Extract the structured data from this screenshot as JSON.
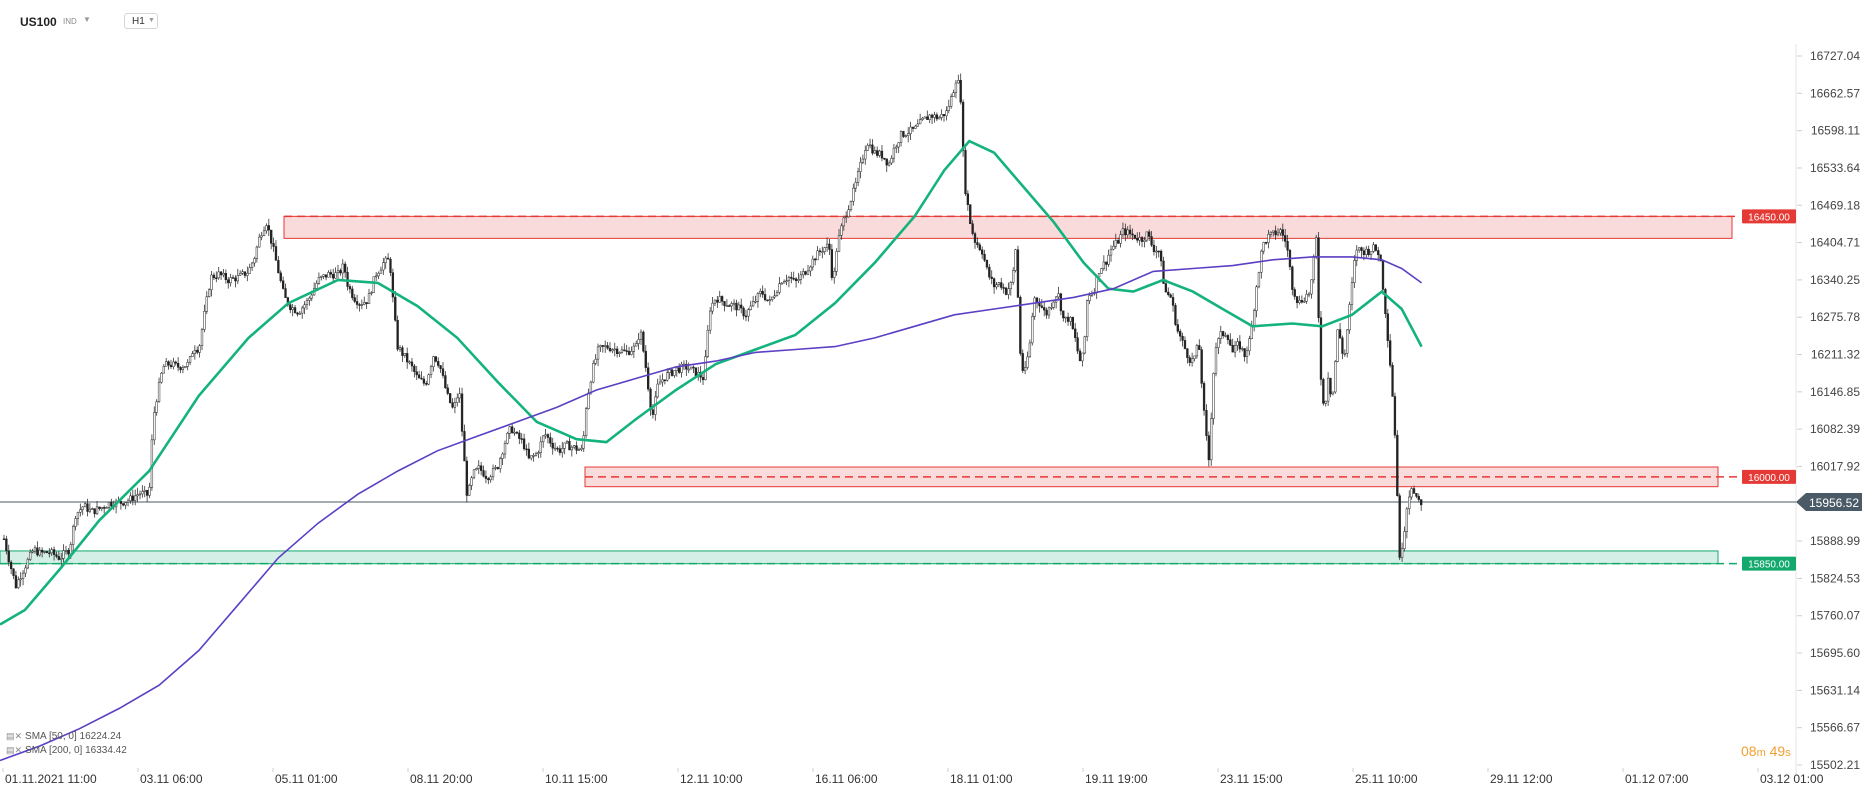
{
  "toolbar": {
    "symbol": "US100",
    "market": "IND",
    "timeframe": "H1",
    "dropdown_icon": "caret-down-icon"
  },
  "indicators": [
    {
      "label": "SMA [50, 0] 16224.24",
      "color": "#14b37d",
      "icons": "eye-icon close-icon"
    },
    {
      "label": "SMA [200, 0] 16334.42",
      "color": "#5b3fc4",
      "icons": "eye-icon close-icon"
    }
  ],
  "countdown": {
    "minutes": "08",
    "m": "m",
    "seconds": "49",
    "s": "s"
  },
  "chart_data": {
    "type": "candlestick",
    "instrument": "US100",
    "interval": "H1",
    "y_ticks": [
      16727.04,
      16662.57,
      16598.11,
      16533.64,
      16469.18,
      16404.71,
      16340.25,
      16275.78,
      16211.32,
      16146.85,
      16082.39,
      16017.92,
      15888.99,
      15824.53,
      15760.07,
      15695.6,
      15631.14,
      15566.67,
      15502.21
    ],
    "y_range": [
      15502.21,
      16760
    ],
    "x_ticks": [
      "01.11.2021  11:00",
      "03.11  06:00",
      "05.11  01:00",
      "08.11  20:00",
      "10.11  15:00",
      "12.11  10:00",
      "16.11  06:00",
      "18.11  01:00",
      "19.11  19:00",
      "23.11  15:00",
      "25.11  10:00",
      "29.11  12:00",
      "01.12  07:00",
      "03.12  01:00"
    ],
    "current_price": {
      "value": "15956.52",
      "color": "#4a5a66"
    },
    "zones": [
      {
        "level": "16450.00",
        "color": "#e53935",
        "low": 16412,
        "high": 16450
      },
      {
        "level": "16000.00",
        "color": "#e53935",
        "low": 15983,
        "high": 16017
      },
      {
        "level": "15850.00",
        "color": "#13a96d",
        "low": 15850,
        "high": 15872
      }
    ],
    "series": [
      {
        "name": "SMA [50, 0]",
        "color": "#14b37d",
        "points": [
          [
            0,
            15745
          ],
          [
            25,
            15770
          ],
          [
            60,
            15840
          ],
          [
            100,
            15925
          ],
          [
            150,
            16010
          ],
          [
            200,
            16140
          ],
          [
            250,
            16240
          ],
          [
            290,
            16300
          ],
          [
            340,
            16340
          ],
          [
            380,
            16335
          ],
          [
            420,
            16295
          ],
          [
            460,
            16240
          ],
          [
            500,
            16165
          ],
          [
            540,
            16095
          ],
          [
            580,
            16065
          ],
          [
            610,
            16060
          ],
          [
            640,
            16100
          ],
          [
            680,
            16150
          ],
          [
            720,
            16195
          ],
          [
            760,
            16220
          ],
          [
            800,
            16245
          ],
          [
            840,
            16300
          ],
          [
            880,
            16370
          ],
          [
            920,
            16450
          ],
          [
            950,
            16530
          ],
          [
            975,
            16580
          ],
          [
            1000,
            16560
          ],
          [
            1030,
            16500
          ],
          [
            1060,
            16440
          ],
          [
            1090,
            16370
          ],
          [
            1115,
            16325
          ],
          [
            1140,
            16320
          ],
          [
            1170,
            16340
          ],
          [
            1200,
            16320
          ],
          [
            1230,
            16290
          ],
          [
            1260,
            16260
          ],
          [
            1300,
            16265
          ],
          [
            1330,
            16260
          ],
          [
            1360,
            16280
          ],
          [
            1390,
            16320
          ],
          [
            1410,
            16290
          ],
          [
            1430,
            16225
          ]
        ]
      },
      {
        "name": "SMA [200, 0]",
        "color": "#5b3fc4",
        "points": [
          [
            0,
            15510
          ],
          [
            40,
            15535
          ],
          [
            80,
            15565
          ],
          [
            120,
            15600
          ],
          [
            160,
            15640
          ],
          [
            200,
            15700
          ],
          [
            240,
            15780
          ],
          [
            280,
            15860
          ],
          [
            320,
            15920
          ],
          [
            360,
            15970
          ],
          [
            400,
            16010
          ],
          [
            440,
            16045
          ],
          [
            480,
            16070
          ],
          [
            520,
            16095
          ],
          [
            560,
            16120
          ],
          [
            600,
            16150
          ],
          [
            640,
            16170
          ],
          [
            680,
            16190
          ],
          [
            720,
            16200
          ],
          [
            760,
            16215
          ],
          [
            800,
            16220
          ],
          [
            840,
            16225
          ],
          [
            880,
            16240
          ],
          [
            920,
            16260
          ],
          [
            960,
            16280
          ],
          [
            1000,
            16290
          ],
          [
            1040,
            16300
          ],
          [
            1080,
            16310
          ],
          [
            1120,
            16325
          ],
          [
            1160,
            16355
          ],
          [
            1200,
            16360
          ],
          [
            1240,
            16365
          ],
          [
            1280,
            16375
          ],
          [
            1320,
            16380
          ],
          [
            1360,
            16380
          ],
          [
            1390,
            16375
          ],
          [
            1410,
            16360
          ],
          [
            1430,
            16335
          ]
        ]
      }
    ],
    "price_path": [
      [
        4,
        15893
      ],
      [
        10,
        15850
      ],
      [
        16,
        15812
      ],
      [
        22,
        15835
      ],
      [
        28,
        15855
      ],
      [
        34,
        15875
      ],
      [
        40,
        15868
      ],
      [
        50,
        15870
      ],
      [
        60,
        15860
      ],
      [
        70,
        15875
      ],
      [
        76,
        15935
      ],
      [
        84,
        15950
      ],
      [
        92,
        15940
      ],
      [
        100,
        15945
      ],
      [
        110,
        15955
      ],
      [
        120,
        15955
      ],
      [
        130,
        15960
      ],
      [
        140,
        15972
      ],
      [
        150,
        15968
      ],
      [
        154,
        16100
      ],
      [
        158,
        16140
      ],
      [
        164,
        16190
      ],
      [
        170,
        16195
      ],
      [
        180,
        16190
      ],
      [
        190,
        16195
      ],
      [
        195,
        16225
      ],
      [
        200,
        16220
      ],
      [
        206,
        16285
      ],
      [
        212,
        16345
      ],
      [
        220,
        16350
      ],
      [
        230,
        16340
      ],
      [
        240,
        16345
      ],
      [
        250,
        16355
      ],
      [
        256,
        16380
      ],
      [
        262,
        16420
      ],
      [
        268,
        16440
      ],
      [
        274,
        16400
      ],
      [
        280,
        16355
      ],
      [
        286,
        16310
      ],
      [
        292,
        16295
      ],
      [
        300,
        16285
      ],
      [
        310,
        16305
      ],
      [
        320,
        16340
      ],
      [
        330,
        16350
      ],
      [
        340,
        16350
      ],
      [
        346,
        16365
      ],
      [
        350,
        16330
      ],
      [
        356,
        16310
      ],
      [
        362,
        16300
      ],
      [
        370,
        16305
      ],
      [
        378,
        16350
      ],
      [
        386,
        16370
      ],
      [
        392,
        16375
      ],
      [
        396,
        16290
      ],
      [
        400,
        16225
      ],
      [
        406,
        16210
      ],
      [
        414,
        16190
      ],
      [
        420,
        16170
      ],
      [
        428,
        16160
      ],
      [
        436,
        16210
      ],
      [
        442,
        16195
      ],
      [
        450,
        16140
      ],
      [
        456,
        16115
      ],
      [
        462,
        16150
      ],
      [
        466,
        16050
      ],
      [
        470,
        15965
      ],
      [
        476,
        16005
      ],
      [
        482,
        16015
      ],
      [
        490,
        16000
      ],
      [
        500,
        16015
      ],
      [
        508,
        16060
      ],
      [
        514,
        16085
      ],
      [
        520,
        16070
      ],
      [
        526,
        16060
      ],
      [
        532,
        16030
      ],
      [
        540,
        16040
      ],
      [
        548,
        16075
      ],
      [
        556,
        16055
      ],
      [
        562,
        16045
      ],
      [
        570,
        16055
      ],
      [
        578,
        16050
      ],
      [
        586,
        16045
      ],
      [
        590,
        16130
      ],
      [
        596,
        16185
      ],
      [
        602,
        16220
      ],
      [
        610,
        16225
      ],
      [
        620,
        16220
      ],
      [
        630,
        16215
      ],
      [
        640,
        16225
      ],
      [
        644,
        16255
      ],
      [
        650,
        16185
      ],
      [
        656,
        16100
      ],
      [
        662,
        16160
      ],
      [
        670,
        16175
      ],
      [
        680,
        16185
      ],
      [
        690,
        16190
      ],
      [
        700,
        16180
      ],
      [
        708,
        16170
      ],
      [
        714,
        16290
      ],
      [
        720,
        16310
      ],
      [
        730,
        16300
      ],
      [
        740,
        16295
      ],
      [
        750,
        16280
      ],
      [
        758,
        16300
      ],
      [
        766,
        16320
      ],
      [
        774,
        16300
      ],
      [
        780,
        16320
      ],
      [
        786,
        16340
      ],
      [
        794,
        16345
      ],
      [
        800,
        16335
      ],
      [
        810,
        16355
      ],
      [
        820,
        16380
      ],
      [
        828,
        16395
      ],
      [
        834,
        16400
      ],
      [
        838,
        16330
      ],
      [
        842,
        16400
      ],
      [
        848,
        16440
      ],
      [
        854,
        16470
      ],
      [
        860,
        16500
      ],
      [
        866,
        16540
      ],
      [
        872,
        16580
      ],
      [
        880,
        16560
      ],
      [
        888,
        16555
      ],
      [
        894,
        16540
      ],
      [
        900,
        16570
      ],
      [
        906,
        16590
      ],
      [
        912,
        16595
      ],
      [
        920,
        16600
      ],
      [
        928,
        16615
      ],
      [
        936,
        16625
      ],
      [
        944,
        16620
      ],
      [
        952,
        16630
      ],
      [
        958,
        16660
      ],
      [
        962,
        16690
      ],
      [
        966,
        16670
      ],
      [
        970,
        16510
      ],
      [
        976,
        16440
      ],
      [
        980,
        16410
      ],
      [
        988,
        16390
      ],
      [
        994,
        16350
      ],
      [
        1000,
        16330
      ],
      [
        1006,
        16335
      ],
      [
        1012,
        16320
      ],
      [
        1018,
        16335
      ],
      [
        1022,
        16400
      ],
      [
        1026,
        16220
      ],
      [
        1030,
        16170
      ],
      [
        1036,
        16230
      ],
      [
        1040,
        16310
      ],
      [
        1046,
        16300
      ],
      [
        1052,
        16280
      ],
      [
        1058,
        16300
      ],
      [
        1064,
        16320
      ],
      [
        1070,
        16270
      ],
      [
        1076,
        16275
      ],
      [
        1082,
        16235
      ],
      [
        1086,
        16200
      ],
      [
        1090,
        16210
      ],
      [
        1094,
        16315
      ],
      [
        1100,
        16320
      ],
      [
        1106,
        16360
      ],
      [
        1112,
        16370
      ],
      [
        1118,
        16395
      ],
      [
        1124,
        16405
      ],
      [
        1130,
        16425
      ],
      [
        1136,
        16420
      ],
      [
        1142,
        16415
      ],
      [
        1148,
        16410
      ],
      [
        1154,
        16420
      ],
      [
        1160,
        16395
      ],
      [
        1166,
        16390
      ],
      [
        1172,
        16320
      ],
      [
        1178,
        16310
      ],
      [
        1184,
        16255
      ],
      [
        1190,
        16230
      ],
      [
        1196,
        16205
      ],
      [
        1200,
        16200
      ],
      [
        1206,
        16230
      ],
      [
        1212,
        16090
      ],
      [
        1216,
        16030
      ],
      [
        1222,
        16220
      ],
      [
        1228,
        16245
      ],
      [
        1234,
        16250
      ],
      [
        1240,
        16215
      ],
      [
        1246,
        16230
      ],
      [
        1252,
        16210
      ],
      [
        1258,
        16240
      ],
      [
        1264,
        16330
      ],
      [
        1270,
        16400
      ],
      [
        1276,
        16415
      ],
      [
        1282,
        16420
      ],
      [
        1288,
        16425
      ],
      [
        1294,
        16405
      ],
      [
        1300,
        16330
      ],
      [
        1306,
        16300
      ],
      [
        1312,
        16310
      ],
      [
        1318,
        16320
      ],
      [
        1324,
        16410
      ],
      [
        1328,
        16190
      ],
      [
        1332,
        16110
      ],
      [
        1336,
        16175
      ],
      [
        1340,
        16130
      ],
      [
        1346,
        16260
      ],
      [
        1352,
        16200
      ],
      [
        1358,
        16300
      ],
      [
        1364,
        16395
      ],
      [
        1370,
        16390
      ],
      [
        1376,
        16390
      ],
      [
        1382,
        16395
      ],
      [
        1388,
        16385
      ],
      [
        1394,
        16280
      ],
      [
        1400,
        16165
      ],
      [
        1404,
        16050
      ],
      [
        1408,
        15855
      ],
      [
        1412,
        15900
      ],
      [
        1416,
        15960
      ],
      [
        1420,
        15985
      ],
      [
        1424,
        15960
      ],
      [
        1430,
        15956
      ]
    ]
  }
}
